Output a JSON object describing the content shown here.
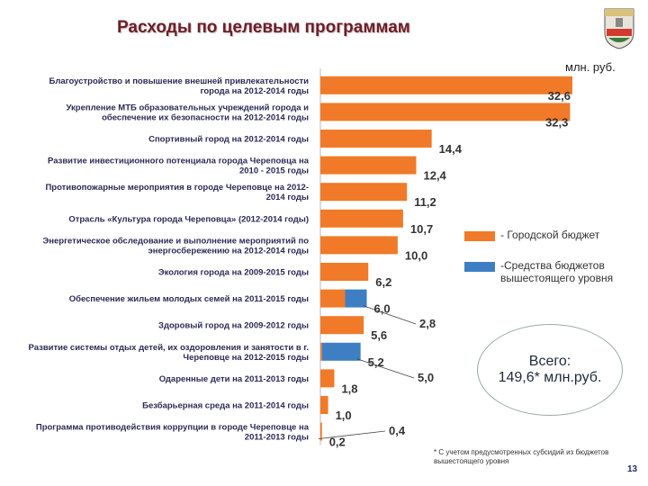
{
  "title": "Расходы по целевым программам",
  "emblem_icon": "city-coat-of-arms-icon",
  "chart_data": {
    "type": "bar",
    "orientation": "horizontal",
    "stacked": true,
    "unit": "млн. руб.",
    "categories": [
      [
        "Благоустройство и повышение внешней привлекательности",
        "города на 2012-2014 годы"
      ],
      [
        "Укрепление МТБ образовательных учреждений города и",
        "обеспечение их безопасности на 2012-2014 годы"
      ],
      [
        "Спортивный город на 2012-2014 годы"
      ],
      [
        "Развитие инвестиционного потенциала города Череповца на",
        "2010 - 2015 годы"
      ],
      [
        "Противопожарные мероприятия в городе Череповце на 2012-",
        "2014 годы"
      ],
      [
        "Отрасль «Культура города Череповца» (2012-2014 годы)"
      ],
      [
        "Энергетическое обследование и выполнение мероприятий по",
        "энергосбережению на 2012-2014 годы"
      ],
      [
        "Экология города на 2009-2015 годы"
      ],
      [
        "Обеспечение жильем молодых семей на 2011-2015 годы"
      ],
      [
        "Здоровый город на 2009-2012 годы"
      ],
      [
        "Развитие системы отдых детей, их оздоровления и занятости в г.",
        "Череповце на 2012-2015 годы"
      ],
      [
        "Одаренные дети на 2011-2013 годы"
      ],
      [
        "Безбарьерная среда на 2011-2014 годы"
      ],
      [
        "Программа противодействия коррупции в городе Череповце на",
        "2011-2013 годы"
      ]
    ],
    "series": [
      {
        "name": "- Городской бюджет",
        "color": "#f07a28",
        "values": [
          32.6,
          32.3,
          14.4,
          12.4,
          11.2,
          10.7,
          10.0,
          6.2,
          3.2,
          5.6,
          0.2,
          1.8,
          1.0,
          0.2
        ]
      },
      {
        "name": "-Средства бюджетов вышестоящего уровня",
        "color": "#3e7fc4",
        "values": [
          0,
          0,
          0,
          0,
          0,
          0,
          0,
          0,
          2.8,
          0,
          5.0,
          0,
          0,
          0.0
        ]
      }
    ],
    "value_labels": [
      "32,6",
      "32,3",
      "14,4",
      "12,4",
      "11,2",
      "10,7",
      "10,0",
      "6,2",
      "6,0",
      "5,6",
      "5,2",
      "1,8",
      "1,0",
      "0,2"
    ],
    "callouts": [
      "2,8",
      "5,0",
      "0,4"
    ],
    "xlim": [
      0,
      34
    ]
  },
  "total": {
    "line1": "Всего:",
    "line2": "149,6* млн.руб."
  },
  "footnote": "* С учетом предусмотренных субсидий из бюджетов вышестоящего уровня",
  "page_number": "13"
}
